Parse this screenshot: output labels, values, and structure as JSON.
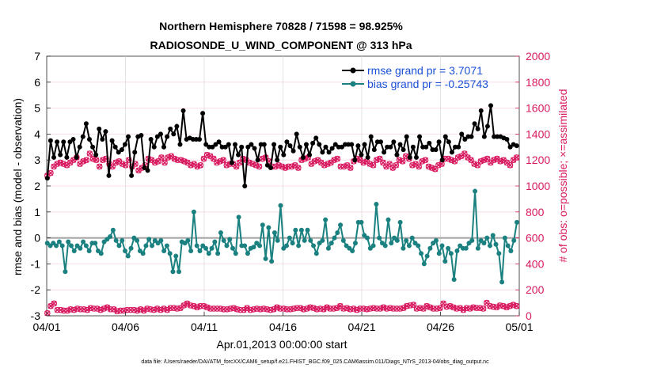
{
  "chart_data": {
    "type": "line",
    "title_line1": "Northern Hemisphere 70828 / 71598 = 98.925%",
    "title_line2": "RADIOSONDE_U_WIND_COMPONENT @ 313 hPa",
    "xlabel": "Apr.01,2013 00:00:00 start",
    "ylabel_left": "rmse and bias (model - observation)",
    "ylabel_right": "# of obs: o=possible; ×=assimilated",
    "footnote": "data file: /Users/raeder/DAI/ATM_forcXX/CAM6_setup/f.e21.FHIST_BGC.f09_025.CAM6assim.011/Diags_NTrS_2013-04/obs_diag_output.nc",
    "xlim": [
      0,
      30
    ],
    "ylim_left": [
      -3,
      7
    ],
    "ylim_right": [
      0,
      2000
    ],
    "x_ticks": [
      0,
      5,
      10,
      15,
      20,
      25,
      30
    ],
    "x_tick_labels": [
      "04/01",
      "04/06",
      "04/11",
      "04/16",
      "04/21",
      "04/26",
      "05/01"
    ],
    "y_left_ticks": [
      -3,
      -2,
      -1,
      0,
      1,
      2,
      3,
      4,
      5,
      6,
      7
    ],
    "y_left_tick_labels": [
      "-3",
      "-2",
      "-1",
      "0",
      "1",
      "2",
      "3",
      "4",
      "5",
      "6",
      "7"
    ],
    "y_right_ticks": [
      0,
      200,
      400,
      600,
      800,
      1000,
      1200,
      1400,
      1600,
      1800,
      2000
    ],
    "y_right_tick_labels": [
      "0",
      "200",
      "400",
      "600",
      "800",
      "1000",
      "1200",
      "1400",
      "1600",
      "1800",
      "2000"
    ],
    "colors": {
      "rmse": "#000000",
      "bias": "#1a8080",
      "obs": "#d81b60",
      "zero_line": "#a0a0a0",
      "legend_text": "#1a4fd6",
      "right_axis": "#d81b60"
    },
    "series": [
      {
        "name": "rmse grand pr = 3.7071",
        "axis": "left",
        "values": [
          2.3,
          3.75,
          3.1,
          3.7,
          3.2,
          3.7,
          3.1,
          3.7,
          3.8,
          3.1,
          3.5,
          3.9,
          4.4,
          3.8,
          3.5,
          3.2,
          4.2,
          3.8,
          4.1,
          2.4,
          3.75,
          3.5,
          3.3,
          3.4,
          3.6,
          3.9,
          2.4,
          3.3,
          3.9,
          3.95,
          2.7,
          2.6,
          3.8,
          3.5,
          3.9,
          4.0,
          3.5,
          3.9,
          4.2,
          4.0,
          4.3,
          3.6,
          4.9,
          3.8,
          3.85,
          3.8,
          3.8,
          3.8,
          4.8,
          3.6,
          3.5,
          3.5,
          3.6,
          3.7,
          3.5,
          3.5,
          3.6,
          2.9,
          3.6,
          3.2,
          3.5,
          2.0,
          3.5,
          3.6,
          3.45,
          3.0,
          3.6,
          3.6,
          2.8,
          2.7,
          3.6,
          3.0,
          3.5,
          3.2,
          3.7,
          3.55,
          3.35,
          4.0,
          3.5,
          3.1,
          3.6,
          3.2,
          3.65,
          3.85,
          3.6,
          3.3,
          3.5,
          3.3,
          3.45,
          3.6,
          3.5,
          3.5,
          3.6,
          3.6,
          3.6,
          3.0,
          3.55,
          3.2,
          3.6,
          3.1,
          3.9,
          3.4,
          3.7,
          3.7,
          3.3,
          3.5,
          3.5,
          3.7,
          3.2,
          3.6,
          3.4,
          3.9,
          3.1,
          3.5,
          3.1,
          3.9,
          3.5,
          3.5,
          3.65,
          3.4,
          3.4,
          3.7,
          3.0,
          3.9,
          3.7,
          3.3,
          3.5,
          3.5,
          4.0,
          3.8,
          3.9,
          3.9,
          4.4,
          4.2,
          4.9,
          3.9,
          4.3,
          5.1,
          3.9,
          3.9,
          3.9,
          3.85,
          3.8,
          3.5,
          3.6,
          3.55
        ]
      },
      {
        "name": "bias grand pr = -0.25743",
        "axis": "left",
        "values": [
          -0.2,
          -0.3,
          -0.2,
          -0.3,
          -0.15,
          -0.3,
          -1.3,
          -0.15,
          -0.3,
          -0.5,
          -0.3,
          -0.4,
          -0.15,
          -0.3,
          -0.5,
          -0.2,
          -0.2,
          -0.5,
          -0.6,
          -0.15,
          -0.05,
          0.05,
          0.3,
          -0.1,
          -0.3,
          -0.1,
          -0.5,
          -0.7,
          -0.4,
          0.0,
          -0.1,
          -0.5,
          -0.6,
          -0.3,
          -0.05,
          -0.3,
          -0.1,
          -0.2,
          -0.1,
          -0.5,
          -0.3,
          -0.6,
          -1.3,
          -0.7,
          -1.3,
          -0.15,
          -0.2,
          -0.1,
          -0.5,
          1.0,
          -0.3,
          -0.5,
          -0.3,
          -0.4,
          -0.6,
          -0.4,
          -0.15,
          -0.6,
          0.2,
          -0.1,
          -0.3,
          -0.05,
          -0.4,
          -0.6,
          0.8,
          -0.3,
          -0.3,
          -0.6,
          -0.4,
          -0.35,
          -0.2,
          -0.3,
          0.5,
          -0.8,
          0.4,
          -0.9,
          0.2,
          -0.1,
          1.25,
          -0.4,
          -0.3,
          0.0,
          -0.2,
          0.3,
          -0.3,
          0.3,
          -0.1,
          0.3,
          -0.1,
          -0.3,
          -0.6,
          -0.2,
          -0.1,
          0.7,
          -0.4,
          -0.2,
          0.0,
          0.2,
          0.5,
          -0.1,
          -0.3,
          -0.4,
          -0.5,
          -0.2,
          0.6,
          0.6,
          0.1,
          0.0,
          -0.4,
          -0.3,
          1.3,
          0.0,
          -0.2,
          -0.3,
          0.7,
          -0.2,
          0.0,
          -0.1,
          0.6,
          -0.4,
          -0.1,
          -0.3,
          0.0,
          -0.2,
          -0.3,
          -0.6,
          -1.0,
          -0.7,
          -0.4,
          -0.2,
          -0.1,
          -0.6,
          -0.3,
          -0.9,
          -0.4,
          -0.6,
          -1.6,
          -0.5,
          -0.3,
          -0.4,
          -0.4,
          -0.2,
          -0.1,
          1.8,
          -0.4,
          -0.1,
          -0.2,
          0.0,
          -0.3,
          0.1,
          -0.25,
          -0.6,
          -1.7,
          0.0,
          -0.3,
          -0.5,
          -0.1,
          0.6
        ]
      },
      {
        "name": "obs possible / assimilated",
        "axis": "right",
        "values": [
          20,
          75,
          95,
          45,
          45,
          40,
          40,
          50,
          45,
          55,
          50,
          50,
          45,
          60,
          55,
          55,
          45,
          55,
          65,
          50,
          50,
          35,
          40,
          40,
          45,
          45,
          45,
          40,
          50,
          40,
          55,
          50,
          45,
          55,
          45,
          55,
          45,
          60,
          60,
          55,
          60,
          80,
          95,
          80,
          75,
          65,
          75,
          75,
          65,
          55,
          55,
          55,
          55,
          50,
          50,
          55,
          60,
          50,
          45,
          45,
          60,
          45,
          50,
          55,
          50,
          55,
          50,
          45,
          50,
          65,
          55,
          55,
          50,
          50,
          55,
          60,
          60,
          50,
          55,
          65,
          60,
          50,
          55,
          50,
          65,
          55,
          55,
          60,
          75,
          55,
          60,
          50,
          55,
          45,
          55,
          55,
          50,
          55,
          60,
          55,
          55,
          65,
          55,
          60,
          55,
          55,
          55,
          60,
          75,
          80,
          85,
          55,
          60,
          55,
          75,
          65,
          55,
          55,
          60,
          95,
          70,
          75,
          65,
          55,
          60,
          45,
          60,
          55,
          65,
          60,
          60,
          55,
          100,
          75,
          70,
          65,
          80,
          75,
          65,
          75,
          85,
          75
        ]
      }
    ],
    "rmse_values_right": [
      1080,
      1100,
      1150,
      1170,
      1180,
      1170,
      1160,
      1180,
      1200,
      1220,
      1170,
      1190,
      1200,
      1250,
      1210,
      1200,
      1150,
      1200,
      1210,
      1170,
      1150,
      1180,
      1190,
      1170,
      1160,
      1200,
      1150,
      1170,
      1120,
      1140,
      1160,
      1210,
      1200,
      1180,
      1190,
      1220,
      1180,
      1220,
      1230,
      1210,
      1200,
      1200,
      1190,
      1180,
      1160,
      1170,
      1150,
      1160,
      1210,
      1240,
      1230,
      1210,
      1180,
      1190,
      1200,
      1160,
      1170,
      1170,
      1150,
      1180,
      1210,
      1200,
      1180,
      1170,
      1160,
      1150,
      1210,
      1220,
      1190,
      1150,
      1150,
      1160,
      1150,
      1140,
      1150,
      1150,
      1160,
      1140,
      1200,
      1210,
      1220,
      1170,
      1190,
      1200,
      1180,
      1160,
      1170,
      1180,
      1200,
      1210,
      1150,
      1150,
      1160,
      1140,
      1190,
      1210,
      1200,
      1180,
      1190,
      1170,
      1160,
      1200,
      1210,
      1180,
      1150,
      1170,
      1140,
      1160,
      1200,
      1190,
      1230,
      1210,
      1160,
      1170,
      1150,
      1190,
      1200,
      1150,
      1140,
      1130,
      1160,
      1170,
      1210,
      1210,
      1200,
      1190,
      1220,
      1230,
      1250,
      1220,
      1200,
      1170,
      1160,
      1190,
      1200,
      1210,
      1180,
      1200,
      1210,
      1190,
      1200,
      1180,
      1160,
      1200,
      1220
    ]
  },
  "legend": {
    "rmse_label": "rmse grand pr = 3.7071",
    "bias_label": "bias grand pr = -0.25743"
  }
}
